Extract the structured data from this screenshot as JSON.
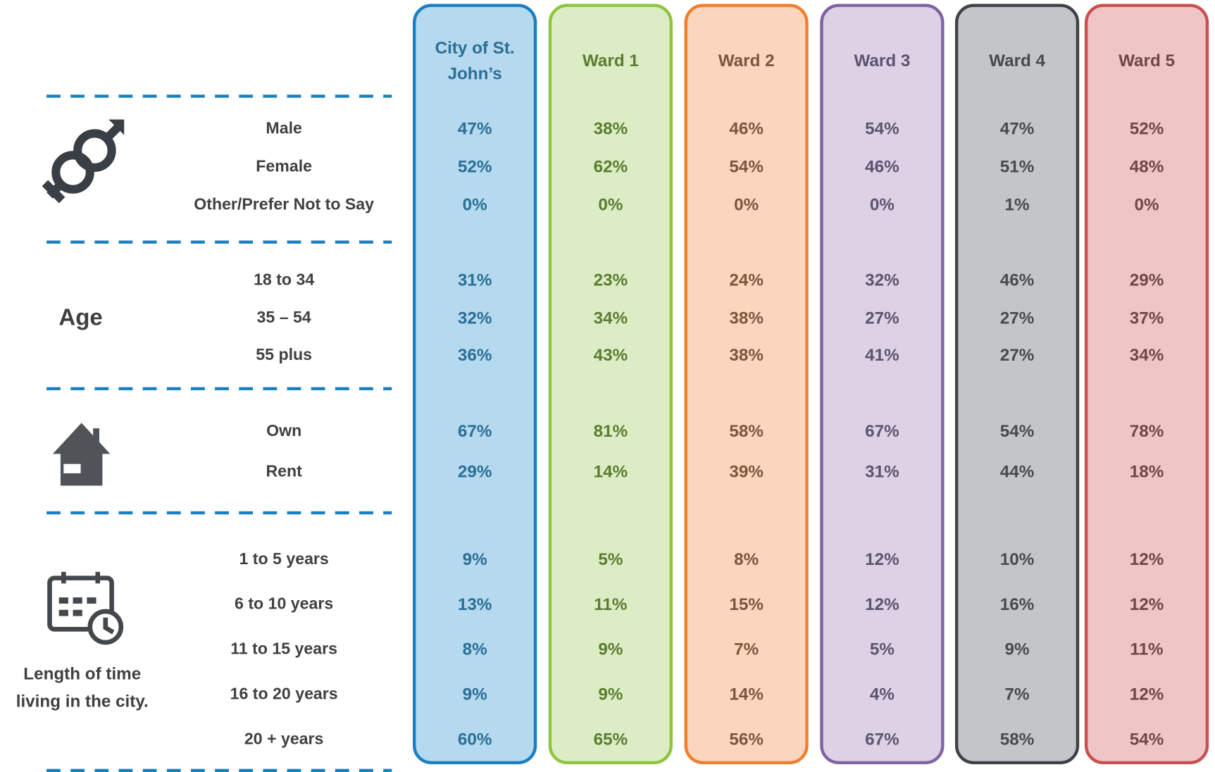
{
  "columns": [
    "City of St. John’s",
    "Ward 1",
    "Ward 2",
    "Ward 3",
    "Ward 4",
    "Ward 5"
  ],
  "sections": [
    {
      "rows": [
        {
          "label": "Male",
          "values": [
            "47%",
            "38%",
            "46%",
            "54%",
            "47%",
            "52%"
          ]
        },
        {
          "label": "Female",
          "values": [
            "52%",
            "62%",
            "54%",
            "46%",
            "51%",
            "48%"
          ]
        },
        {
          "label": "Other/Prefer Not to Say",
          "values": [
            "0%",
            "0%",
            "0%",
            "0%",
            "1%",
            "0%"
          ]
        }
      ]
    },
    {
      "label": "Age",
      "rows": [
        {
          "label": "18 to 34",
          "values": [
            "31%",
            "23%",
            "24%",
            "32%",
            "46%",
            "29%"
          ]
        },
        {
          "label": "35 – 54",
          "values": [
            "32%",
            "34%",
            "38%",
            "27%",
            "27%",
            "37%"
          ]
        },
        {
          "label": "55 plus",
          "values": [
            "36%",
            "43%",
            "38%",
            "41%",
            "27%",
            "34%"
          ]
        }
      ]
    },
    {
      "rows": [
        {
          "label": "Own",
          "values": [
            "67%",
            "81%",
            "58%",
            "67%",
            "54%",
            "78%"
          ]
        },
        {
          "label": "Rent",
          "values": [
            "29%",
            "14%",
            "39%",
            "31%",
            "44%",
            "18%"
          ]
        }
      ]
    },
    {
      "label": "Length of time living in the city.",
      "rows": [
        {
          "label": "1 to 5 years",
          "values": [
            "9%",
            "5%",
            "8%",
            "12%",
            "10%",
            "12%"
          ]
        },
        {
          "label": "6 to 10 years",
          "values": [
            "13%",
            "11%",
            "15%",
            "12%",
            "16%",
            "12%"
          ]
        },
        {
          "label": "11 to 15 years",
          "values": [
            "8%",
            "9%",
            "7%",
            "5%",
            "9%",
            "11%"
          ]
        },
        {
          "label": "16 to 20 years",
          "values": [
            "9%",
            "9%",
            "14%",
            "4%",
            "7%",
            "12%"
          ]
        },
        {
          "label": "20 + years",
          "values": [
            "60%",
            "65%",
            "56%",
            "67%",
            "58%",
            "54%"
          ]
        }
      ]
    }
  ]
}
